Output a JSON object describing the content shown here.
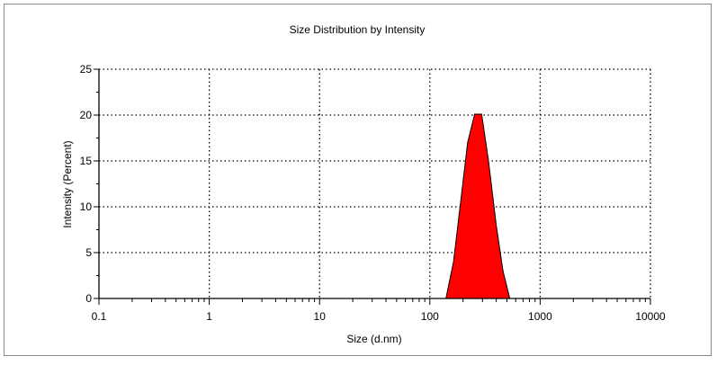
{
  "chart_data": {
    "type": "area",
    "title": "Size Distribution by Intensity",
    "xlabel": "Size (d.nm)",
    "ylabel": "Intensity (Percent)",
    "xscale": "log",
    "xlim": [
      0.1,
      10000
    ],
    "ylim": [
      0,
      25
    ],
    "x_ticks": [
      0.1,
      1,
      10,
      100,
      1000,
      10000
    ],
    "x_tick_labels": [
      "0.1",
      "1",
      "10",
      "100",
      "1000",
      "10000"
    ],
    "y_ticks": [
      0,
      5,
      10,
      15,
      20,
      25
    ],
    "y_tick_labels": [
      "0",
      "5",
      "10",
      "15",
      "20",
      "25"
    ],
    "grid": true,
    "fill_color": "#ff0000",
    "series": [
      {
        "x": [
          0.4,
          140,
          164,
          190,
          220,
          255,
          260,
          295,
          340,
          400,
          460,
          531,
          10000
        ],
        "y": [
          0,
          0,
          4.0,
          10.5,
          17.0,
          20.1,
          20.1,
          20.1,
          15.0,
          8.0,
          3.0,
          0,
          0
        ]
      }
    ]
  }
}
